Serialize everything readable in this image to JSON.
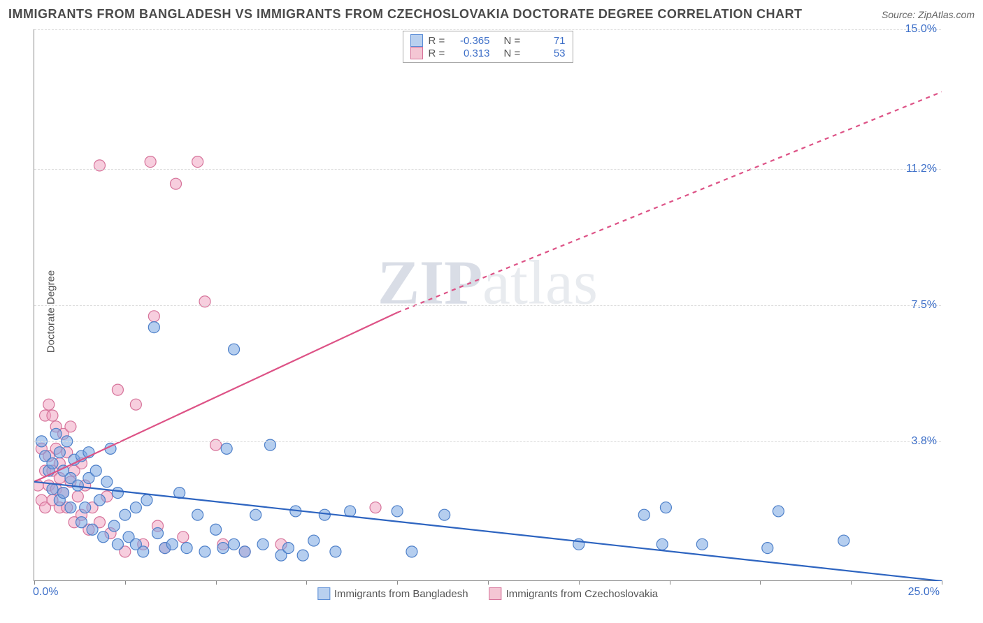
{
  "title": "IMMIGRANTS FROM BANGLADESH VS IMMIGRANTS FROM CZECHOSLOVAKIA DOCTORATE DEGREE CORRELATION CHART",
  "source_label": "Source:",
  "source_name": "ZipAtlas.com",
  "watermark_zip": "ZIP",
  "watermark_atlas": "atlas",
  "ylabel": "Doctorate Degree",
  "chart": {
    "type": "scatter",
    "xlim": [
      0.0,
      25.0
    ],
    "ylim": [
      0.0,
      15.0
    ],
    "x_tick_left": "0.0%",
    "x_tick_right": "25.0%",
    "y_ticks_right": [
      {
        "v": 3.8,
        "label": "3.8%"
      },
      {
        "v": 7.5,
        "label": "7.5%"
      },
      {
        "v": 11.2,
        "label": "11.2%"
      },
      {
        "v": 15.0,
        "label": "15.0%"
      }
    ],
    "grid_color": "#dddddd",
    "axis_color": "#888888",
    "background_color": "#ffffff",
    "tick_label_color": "#3d6fc8",
    "marker_radius": 8,
    "marker_stroke_width": 1.2,
    "trend_line_width": 2.2,
    "legend_top": {
      "labels": {
        "R": "R =",
        "N": "N ="
      },
      "rows": [
        {
          "swatch_fill": "#b9d0ef",
          "swatch_border": "#5b8dd6",
          "R": "-0.365",
          "N": "71"
        },
        {
          "swatch_fill": "#f4c6d4",
          "swatch_border": "#d6739a",
          "R": "0.313",
          "N": "53"
        }
      ]
    },
    "legend_bottom": {
      "items": [
        {
          "swatch_fill": "#b9d0ef",
          "swatch_border": "#5b8dd6",
          "label": "Immigrants from Bangladesh"
        },
        {
          "swatch_fill": "#f4c6d4",
          "swatch_border": "#d6739a",
          "label": "Immigrants from Czechoslovakia"
        }
      ]
    },
    "series_blue": {
      "fill": "rgba(120,165,225,0.55)",
      "stroke": "#4e80c9",
      "trend_stroke": "#2d64c0",
      "trend": {
        "x1": 0.0,
        "y1": 2.7,
        "x2": 25.0,
        "y2": 0.0
      },
      "trend_dash_x": 25.0,
      "points": [
        [
          0.2,
          3.8
        ],
        [
          0.3,
          3.4
        ],
        [
          0.4,
          3.0
        ],
        [
          0.5,
          2.5
        ],
        [
          0.5,
          3.2
        ],
        [
          0.6,
          4.0
        ],
        [
          0.7,
          2.2
        ],
        [
          0.7,
          3.5
        ],
        [
          0.8,
          3.0
        ],
        [
          0.8,
          2.4
        ],
        [
          0.9,
          3.8
        ],
        [
          1.0,
          2.8
        ],
        [
          1.0,
          2.0
        ],
        [
          1.1,
          3.3
        ],
        [
          1.2,
          2.6
        ],
        [
          1.3,
          1.6
        ],
        [
          1.3,
          3.4
        ],
        [
          1.4,
          2.0
        ],
        [
          1.5,
          3.5
        ],
        [
          1.5,
          2.8
        ],
        [
          1.6,
          1.4
        ],
        [
          1.7,
          3.0
        ],
        [
          1.8,
          2.2
        ],
        [
          1.9,
          1.2
        ],
        [
          2.0,
          2.7
        ],
        [
          2.1,
          3.6
        ],
        [
          2.2,
          1.5
        ],
        [
          2.3,
          1.0
        ],
        [
          2.3,
          2.4
        ],
        [
          2.5,
          1.8
        ],
        [
          2.6,
          1.2
        ],
        [
          2.8,
          2.0
        ],
        [
          2.8,
          1.0
        ],
        [
          3.0,
          0.8
        ],
        [
          3.1,
          2.2
        ],
        [
          3.3,
          6.9
        ],
        [
          3.4,
          1.3
        ],
        [
          3.6,
          0.9
        ],
        [
          3.8,
          1.0
        ],
        [
          4.0,
          2.4
        ],
        [
          4.2,
          0.9
        ],
        [
          4.5,
          1.8
        ],
        [
          4.7,
          0.8
        ],
        [
          5.0,
          1.4
        ],
        [
          5.2,
          0.9
        ],
        [
          5.3,
          3.6
        ],
        [
          5.5,
          6.3
        ],
        [
          5.5,
          1.0
        ],
        [
          5.8,
          0.8
        ],
        [
          6.1,
          1.8
        ],
        [
          6.3,
          1.0
        ],
        [
          6.5,
          3.7
        ],
        [
          6.8,
          0.7
        ],
        [
          7.0,
          0.9
        ],
        [
          7.2,
          1.9
        ],
        [
          7.4,
          0.7
        ],
        [
          7.7,
          1.1
        ],
        [
          8.0,
          1.8
        ],
        [
          8.3,
          0.8
        ],
        [
          8.7,
          1.9
        ],
        [
          10.0,
          1.9
        ],
        [
          10.4,
          0.8
        ],
        [
          11.3,
          1.8
        ],
        [
          15.0,
          1.0
        ],
        [
          16.8,
          1.8
        ],
        [
          17.3,
          1.0
        ],
        [
          17.4,
          2.0
        ],
        [
          18.4,
          1.0
        ],
        [
          20.2,
          0.9
        ],
        [
          20.5,
          1.9
        ],
        [
          22.3,
          1.1
        ]
      ]
    },
    "series_pink": {
      "fill": "rgba(240,165,195,0.55)",
      "stroke": "#d6739a",
      "trend_stroke": "#dd5286",
      "trend": {
        "x1": 0.0,
        "y1": 2.7,
        "x2": 10.0,
        "y2": 7.3
      },
      "trend_dash_end": {
        "x": 25.0,
        "y": 13.3
      },
      "points": [
        [
          0.1,
          2.6
        ],
        [
          0.2,
          3.6
        ],
        [
          0.2,
          2.2
        ],
        [
          0.3,
          4.5
        ],
        [
          0.3,
          3.0
        ],
        [
          0.3,
          2.0
        ],
        [
          0.4,
          4.8
        ],
        [
          0.4,
          2.6
        ],
        [
          0.4,
          3.4
        ],
        [
          0.5,
          4.5
        ],
        [
          0.5,
          3.0
        ],
        [
          0.5,
          2.2
        ],
        [
          0.6,
          3.6
        ],
        [
          0.6,
          2.5
        ],
        [
          0.6,
          4.2
        ],
        [
          0.7,
          2.8
        ],
        [
          0.7,
          2.0
        ],
        [
          0.7,
          3.2
        ],
        [
          0.8,
          4.0
        ],
        [
          0.8,
          2.4
        ],
        [
          0.9,
          3.5
        ],
        [
          0.9,
          2.0
        ],
        [
          1.0,
          2.7
        ],
        [
          1.0,
          4.2
        ],
        [
          1.1,
          1.6
        ],
        [
          1.1,
          3.0
        ],
        [
          1.2,
          2.3
        ],
        [
          1.3,
          3.2
        ],
        [
          1.3,
          1.8
        ],
        [
          1.4,
          2.6
        ],
        [
          1.5,
          1.4
        ],
        [
          1.6,
          2.0
        ],
        [
          1.8,
          1.6
        ],
        [
          1.8,
          11.3
        ],
        [
          2.0,
          2.3
        ],
        [
          2.1,
          1.3
        ],
        [
          2.3,
          5.2
        ],
        [
          2.5,
          0.8
        ],
        [
          2.8,
          4.8
        ],
        [
          3.0,
          1.0
        ],
        [
          3.2,
          11.4
        ],
        [
          3.3,
          7.2
        ],
        [
          3.4,
          1.5
        ],
        [
          3.6,
          0.9
        ],
        [
          3.9,
          10.8
        ],
        [
          4.1,
          1.2
        ],
        [
          4.5,
          11.4
        ],
        [
          4.7,
          7.6
        ],
        [
          5.0,
          3.7
        ],
        [
          5.2,
          1.0
        ],
        [
          5.8,
          0.8
        ],
        [
          6.8,
          1.0
        ],
        [
          9.4,
          2.0
        ]
      ]
    }
  }
}
